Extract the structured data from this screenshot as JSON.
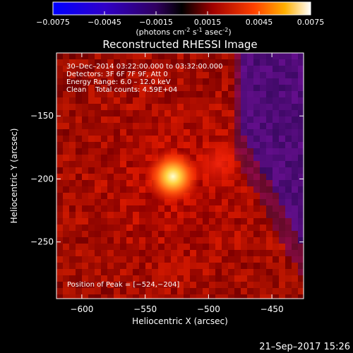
{
  "colorbar": {
    "ticks": [
      "-0.0075",
      "-0.0045",
      "-0.0015",
      "0.0015",
      "0.0045",
      "0.0075"
    ],
    "unit_label_prefix": "(photons cm",
    "unit_exp1": "-2",
    "unit_mid": " s",
    "unit_exp2": "-1",
    "unit_mid2": " asec",
    "unit_exp3": "-2",
    "unit_suffix": ")",
    "vmin": -0.0075,
    "vmax": 0.0075
  },
  "chart_data": {
    "type": "heatmap",
    "title": "Reconstructed RHESSI Image",
    "xlabel": "Heliocentric X (arcsec)",
    "ylabel": "Heliocentric Y (arcsec)",
    "xlim": [
      -620,
      -425
    ],
    "ylim": [
      -295,
      -100
    ],
    "xticks": [
      -600,
      -550,
      -500,
      -450
    ],
    "yticks": [
      -150,
      -200,
      -250
    ],
    "xtick_labels": [
      "−600",
      "−550",
      "−500",
      "−450"
    ],
    "ytick_labels": [
      "−150",
      "−200",
      "−250"
    ],
    "peak": [
      -524,
      -204
    ],
    "peak_label": "Position of Peak = [−524,−204]",
    "annotations": [
      "30–Dec–2014 03:22:00.000 to 03:32:00.000",
      "Detectors: 3F 6F 7F 9F, Att 0",
      "Energy Range: 6.0 – 12.0 keV",
      "Clean    Total counts: 4.59E+04"
    ]
  },
  "footer": {
    "timestamp": "21–Sep–2017 15:26"
  }
}
